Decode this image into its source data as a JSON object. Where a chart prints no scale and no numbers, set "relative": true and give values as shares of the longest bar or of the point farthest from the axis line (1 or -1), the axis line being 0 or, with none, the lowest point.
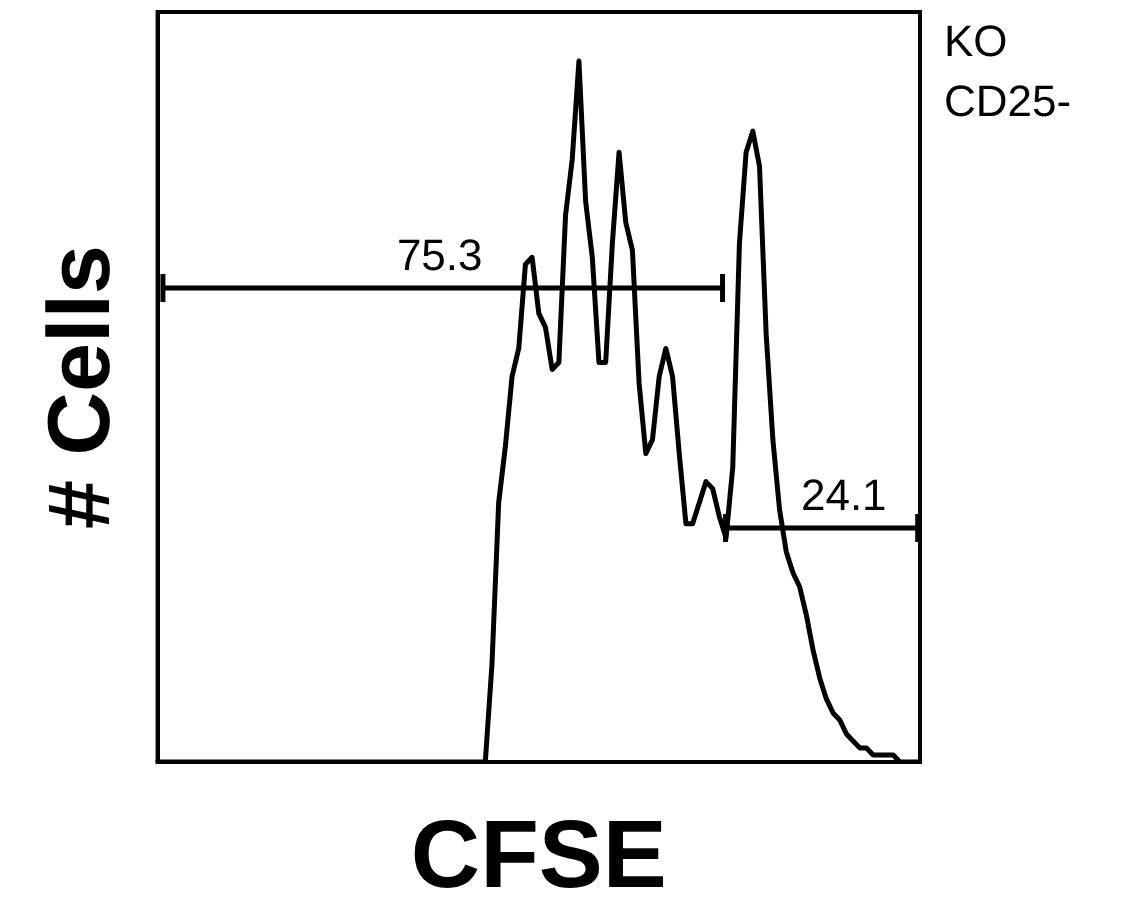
{
  "chart_data": {
    "type": "line",
    "relative": true,
    "xlabel": "CFSE",
    "ylabel": "# Cells",
    "color": "#000000",
    "marker": "none",
    "grid": false,
    "legend": false,
    "categories": [
      null,
      null,
      null,
      null,
      null,
      null,
      null,
      null,
      null,
      null,
      null,
      null,
      null,
      null,
      null,
      null,
      null,
      null,
      null,
      null,
      null,
      null,
      null,
      null,
      null,
      null,
      null,
      null,
      null,
      null,
      null,
      null,
      null,
      null,
      null,
      null,
      null,
      null,
      null,
      null,
      null,
      null,
      null,
      null,
      null,
      null,
      null,
      null,
      null,
      null,
      null,
      null,
      null,
      null,
      null,
      null,
      null,
      null,
      null,
      null,
      null,
      null,
      null,
      null,
      null,
      null,
      null,
      null,
      null,
      null,
      null,
      null,
      null,
      null,
      null,
      null,
      null,
      null,
      null,
      null,
      null,
      null,
      null,
      null,
      null,
      null,
      null,
      null,
      null,
      null,
      null,
      null,
      null,
      null,
      null,
      null,
      null,
      null,
      null,
      null,
      null,
      null,
      null,
      null,
      null,
      null,
      null,
      null,
      null,
      null,
      null,
      null,
      null,
      null,
      null
    ],
    "values": [
      0,
      0,
      0,
      0,
      0,
      0,
      0,
      0,
      0,
      0,
      0,
      0,
      0,
      0,
      0,
      0,
      0,
      0,
      0,
      0,
      0,
      0,
      0,
      0,
      0,
      0,
      0,
      0,
      0,
      0,
      0,
      0,
      0,
      0,
      0,
      0,
      0,
      0,
      0,
      0,
      0,
      0,
      0,
      0,
      0,
      0,
      0,
      0,
      0,
      0,
      0.14,
      0.37,
      0.45,
      0.55,
      0.59,
      0.71,
      0.72,
      0.64,
      0.62,
      0.56,
      0.57,
      0.78,
      0.86,
      1,
      0.8,
      0.72,
      0.57,
      0.57,
      0.74,
      0.87,
      0.77,
      0.73,
      0.54,
      0.44,
      0.46,
      0.55,
      0.59,
      0.55,
      0.44,
      0.34,
      0.34,
      0.37,
      0.4,
      0.39,
      0.35,
      0.32,
      0.42,
      0.74,
      0.87,
      0.9,
      0.85,
      0.61,
      0.46,
      0.36,
      0.3,
      0.27,
      0.25,
      0.21,
      0.16,
      0.12,
      0.09,
      0.07,
      0.06,
      0.04,
      0.03,
      0.02,
      0.02,
      0.01,
      0.01,
      0.01,
      0.01,
      0,
      0,
      0,
      0
    ],
    "annotations": [
      "75.3",
      "24.1",
      "KO",
      "CD25-"
    ]
  }
}
